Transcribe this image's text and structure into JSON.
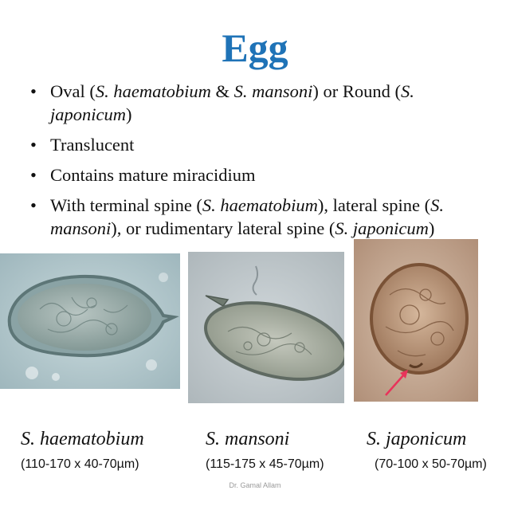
{
  "title": "Egg",
  "bullets": [
    {
      "parts": [
        {
          "t": "Oval (",
          "i": false
        },
        {
          "t": "S. haematobium",
          "i": true
        },
        {
          "t": " & ",
          "i": false
        },
        {
          "t": "S. mansoni",
          "i": true
        },
        {
          "t": ") or Round (",
          "i": false
        },
        {
          "t": "S. japonicum",
          "i": true
        },
        {
          "t": ")",
          "i": false
        }
      ]
    },
    {
      "parts": [
        {
          "t": "Translucent",
          "i": false
        }
      ]
    },
    {
      "parts": [
        {
          "t": "Contains mature miracidium",
          "i": false
        }
      ]
    },
    {
      "parts": [
        {
          "t": "With terminal spine (",
          "i": false
        },
        {
          "t": "S. haematobium",
          "i": true
        },
        {
          "t": "), lateral spine (",
          "i": false
        },
        {
          "t": "S. mansoni",
          "i": true
        },
        {
          "t": "), or rudimentary lateral spine (",
          "i": false
        },
        {
          "t": "S. japonicum",
          "i": true
        },
        {
          "t": ")",
          "i": false
        }
      ]
    }
  ],
  "bullet_glyph": "•",
  "eggs": [
    {
      "name": "S. haematobium",
      "size": "(110-170 x 40-70µm)"
    },
    {
      "name": "S. mansoni",
      "size": "(115-175 x 45-70µm)"
    },
    {
      "name": "S. japonicum",
      "size": "(70-100 x 50-70µm)"
    }
  ],
  "credit": "Dr. Gamal Allam",
  "colors": {
    "title": "#1f73b7",
    "arrow": "#e8335a",
    "haematobium_bg": "#b9cdd2",
    "mansoni_bg": "#c4cbd0",
    "japonicum_bg": "#c6ab97"
  }
}
